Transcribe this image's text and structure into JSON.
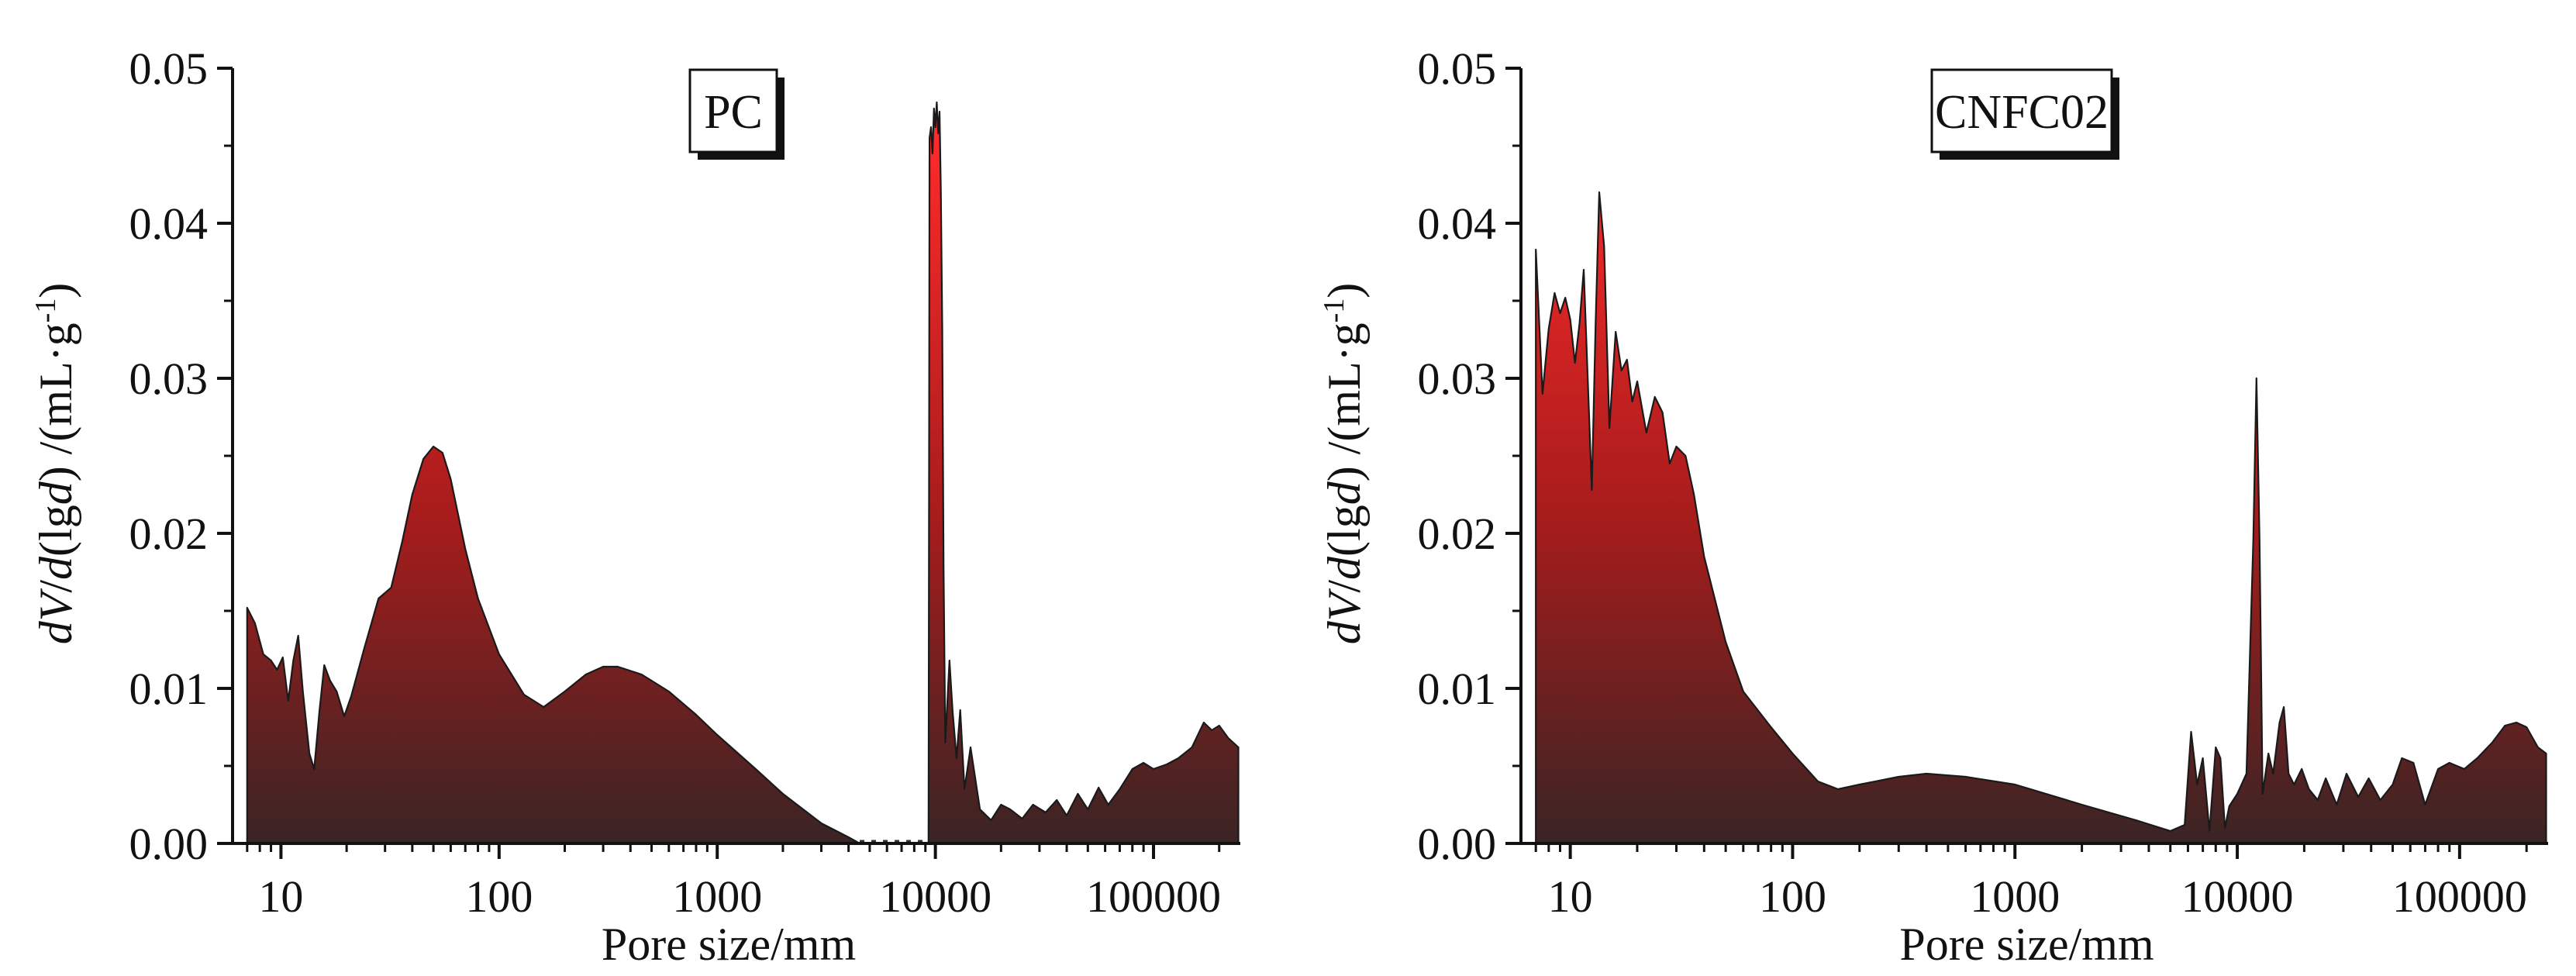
{
  "figure": {
    "colors": {
      "fill_top": "#ff2a2a",
      "fill_mid": "#a61c1c",
      "fill_bottom": "#3a2424",
      "outline": "#1a1a1a",
      "axis": "#111111"
    }
  },
  "chart_data": [
    {
      "type": "area",
      "panel_label": "PC",
      "xlabel": "Pore size/mm",
      "ylabel_parts": {
        "p1": "dV",
        "p2": "/",
        "p3": "d",
        "p4": "(lg",
        "p5": "d",
        "p6": ") /(mL·g",
        "p7": "-1",
        "p8": ")"
      },
      "x_scale": "log",
      "xlim": [
        6,
        250000
      ],
      "ylim": [
        0,
        0.05
      ],
      "x_ticks": [
        10,
        100,
        1000,
        10000,
        100000
      ],
      "x_tick_labels": [
        "10",
        "100",
        "1000",
        "10000",
        "100000"
      ],
      "y_ticks": [
        0,
        0.01,
        0.02,
        0.03,
        0.04,
        0.05
      ],
      "y_tick_labels": [
        "0.00",
        "0.01",
        "0.02",
        "0.03",
        "0.04",
        "0.05"
      ],
      "gap_range": [
        4500,
        9300
      ],
      "series": [
        {
          "points": [
            [
              7,
              0.0152
            ],
            [
              7.6,
              0.0142
            ],
            [
              8.3,
              0.0122
            ],
            [
              9.0,
              0.0118
            ],
            [
              9.6,
              0.0112
            ],
            [
              10.2,
              0.012
            ],
            [
              10.8,
              0.0092
            ],
            [
              11.4,
              0.0118
            ],
            [
              12.0,
              0.0134
            ],
            [
              12.6,
              0.0098
            ],
            [
              13.5,
              0.0058
            ],
            [
              14.2,
              0.0048
            ],
            [
              15.0,
              0.0085
            ],
            [
              15.8,
              0.0115
            ],
            [
              16.8,
              0.0105
            ],
            [
              18.0,
              0.0098
            ],
            [
              19.5,
              0.0082
            ],
            [
              21,
              0.0095
            ],
            [
              24,
              0.0125
            ],
            [
              28,
              0.0158
            ],
            [
              32,
              0.0165
            ],
            [
              36,
              0.0195
            ],
            [
              40,
              0.0225
            ],
            [
              45,
              0.0248
            ],
            [
              50,
              0.0256
            ],
            [
              55,
              0.0252
            ],
            [
              60,
              0.0235
            ],
            [
              70,
              0.019
            ],
            [
              80,
              0.0158
            ],
            [
              100,
              0.0122
            ],
            [
              130,
              0.0096
            ],
            [
              160,
              0.0088
            ],
            [
              200,
              0.0098
            ],
            [
              250,
              0.0109
            ],
            [
              300,
              0.0114
            ],
            [
              350,
              0.0114
            ],
            [
              450,
              0.0109
            ],
            [
              600,
              0.0098
            ],
            [
              800,
              0.0083
            ],
            [
              1000,
              0.007
            ],
            [
              1500,
              0.0048
            ],
            [
              2000,
              0.0032
            ],
            [
              3000,
              0.0013
            ],
            [
              4000,
              0.0004
            ],
            [
              4500,
              0.0
            ],
            [
              9300,
              0.0
            ],
            [
              9400,
              0.0455
            ],
            [
              9550,
              0.0462
            ],
            [
              9700,
              0.0445
            ],
            [
              9850,
              0.0474
            ],
            [
              10000,
              0.0462
            ],
            [
              10150,
              0.0478
            ],
            [
              10300,
              0.0458
            ],
            [
              10450,
              0.0472
            ],
            [
              10600,
              0.042
            ],
            [
              10750,
              0.0332
            ],
            [
              10900,
              0.0178
            ],
            [
              11100,
              0.0065
            ],
            [
              11600,
              0.0118
            ],
            [
              12000,
              0.0085
            ],
            [
              12500,
              0.0055
            ],
            [
              13000,
              0.0086
            ],
            [
              13600,
              0.0035
            ],
            [
              14500,
              0.0062
            ],
            [
              16000,
              0.0022
            ],
            [
              18000,
              0.0015
            ],
            [
              20000,
              0.0025
            ],
            [
              22000,
              0.0022
            ],
            [
              25000,
              0.0016
            ],
            [
              28000,
              0.0025
            ],
            [
              32000,
              0.002
            ],
            [
              36000,
              0.0028
            ],
            [
              40000,
              0.0018
            ],
            [
              45000,
              0.0032
            ],
            [
              50000,
              0.0022
            ],
            [
              56000,
              0.0036
            ],
            [
              62000,
              0.0025
            ],
            [
              70000,
              0.0035
            ],
            [
              80000,
              0.0048
            ],
            [
              90000,
              0.0052
            ],
            [
              100000,
              0.0048
            ],
            [
              115000,
              0.0051
            ],
            [
              130000,
              0.0055
            ],
            [
              150000,
              0.0062
            ],
            [
              170000,
              0.0078
            ],
            [
              185000,
              0.0073
            ],
            [
              200000,
              0.0076
            ],
            [
              220000,
              0.0068
            ],
            [
              245000,
              0.0062
            ]
          ]
        }
      ]
    },
    {
      "type": "area",
      "panel_label": "CNFC02",
      "xlabel": "Pore size/mm",
      "ylabel_parts": {
        "p1": "dV",
        "p2": "/",
        "p3": "d",
        "p4": "(lg",
        "p5": "d",
        "p6": ") /(mL·g",
        "p7": "-1",
        "p8": ")"
      },
      "x_scale": "log",
      "xlim": [
        6,
        250000
      ],
      "ylim": [
        0,
        0.05
      ],
      "x_ticks": [
        10,
        100,
        1000,
        10000,
        100000
      ],
      "x_tick_labels": [
        "10",
        "100",
        "1000",
        "10000",
        "100000"
      ],
      "y_ticks": [
        0,
        0.01,
        0.02,
        0.03,
        0.04,
        0.05
      ],
      "y_tick_labels": [
        "0.00",
        "0.01",
        "0.02",
        "0.03",
        "0.04",
        "0.05"
      ],
      "series": [
        {
          "points": [
            [
              7,
              0.0383
            ],
            [
              7.5,
              0.029
            ],
            [
              8.0,
              0.0332
            ],
            [
              8.5,
              0.0355
            ],
            [
              9.0,
              0.0342
            ],
            [
              9.5,
              0.0352
            ],
            [
              10.0,
              0.0338
            ],
            [
              10.5,
              0.031
            ],
            [
              11.0,
              0.0335
            ],
            [
              11.5,
              0.037
            ],
            [
              12.0,
              0.0298
            ],
            [
              12.5,
              0.0228
            ],
            [
              13.0,
              0.0335
            ],
            [
              13.5,
              0.042
            ],
            [
              14.2,
              0.0385
            ],
            [
              15.0,
              0.0268
            ],
            [
              16.0,
              0.033
            ],
            [
              17.0,
              0.0305
            ],
            [
              18.0,
              0.0312
            ],
            [
              19.0,
              0.0285
            ],
            [
              20.0,
              0.0298
            ],
            [
              22.0,
              0.0265
            ],
            [
              24.0,
              0.0288
            ],
            [
              26.0,
              0.0278
            ],
            [
              28.0,
              0.0245
            ],
            [
              30.0,
              0.0256
            ],
            [
              33.0,
              0.025
            ],
            [
              36.0,
              0.0225
            ],
            [
              40.0,
              0.0185
            ],
            [
              50.0,
              0.013
            ],
            [
              60.0,
              0.0098
            ],
            [
              80.0,
              0.0075
            ],
            [
              100.0,
              0.0058
            ],
            [
              130.0,
              0.004
            ],
            [
              160.0,
              0.0035
            ],
            [
              200.0,
              0.0038
            ],
            [
              300.0,
              0.0043
            ],
            [
              400.0,
              0.0045
            ],
            [
              600.0,
              0.0043
            ],
            [
              1000.0,
              0.0038
            ],
            [
              2000.0,
              0.0025
            ],
            [
              3500.0,
              0.0015
            ],
            [
              5000.0,
              0.0008
            ],
            [
              5800.0,
              0.0012
            ],
            [
              6200.0,
              0.0072
            ],
            [
              6600.0,
              0.0038
            ],
            [
              7000.0,
              0.0055
            ],
            [
              7500.0,
              0.0008
            ],
            [
              8000.0,
              0.0062
            ],
            [
              8400.0,
              0.0055
            ],
            [
              8800.0,
              0.001
            ],
            [
              9200.0,
              0.0024
            ],
            [
              10000.0,
              0.0032
            ],
            [
              11000.0,
              0.0045
            ],
            [
              11800.0,
              0.0195
            ],
            [
              12200.0,
              0.03
            ],
            [
              12600.0,
              0.0195
            ],
            [
              13000.0,
              0.0032
            ],
            [
              13800.0,
              0.0058
            ],
            [
              14500.0,
              0.0045
            ],
            [
              15500.0,
              0.0078
            ],
            [
              16200.0,
              0.0088
            ],
            [
              17000.0,
              0.0045
            ],
            [
              18000.0,
              0.0038
            ],
            [
              19500.0,
              0.0048
            ],
            [
              21000.0,
              0.0035
            ],
            [
              23000.0,
              0.0028
            ],
            [
              25000.0,
              0.0042
            ],
            [
              28000.0,
              0.0025
            ],
            [
              31000.0,
              0.0045
            ],
            [
              35000.0,
              0.003
            ],
            [
              39000.0,
              0.0042
            ],
            [
              44000.0,
              0.0028
            ],
            [
              50000.0,
              0.0038
            ],
            [
              55000.0,
              0.0055
            ],
            [
              62000.0,
              0.0052
            ],
            [
              70000.0,
              0.0025
            ],
            [
              80000.0,
              0.0048
            ],
            [
              90000.0,
              0.0052
            ],
            [
              105000.0,
              0.0048
            ],
            [
              120000.0,
              0.0055
            ],
            [
              140000.0,
              0.0065
            ],
            [
              160000.0,
              0.0076
            ],
            [
              180000.0,
              0.0078
            ],
            [
              200000.0,
              0.0075
            ],
            [
              225000.0,
              0.0062
            ],
            [
              245000.0,
              0.0058
            ]
          ]
        }
      ]
    }
  ]
}
